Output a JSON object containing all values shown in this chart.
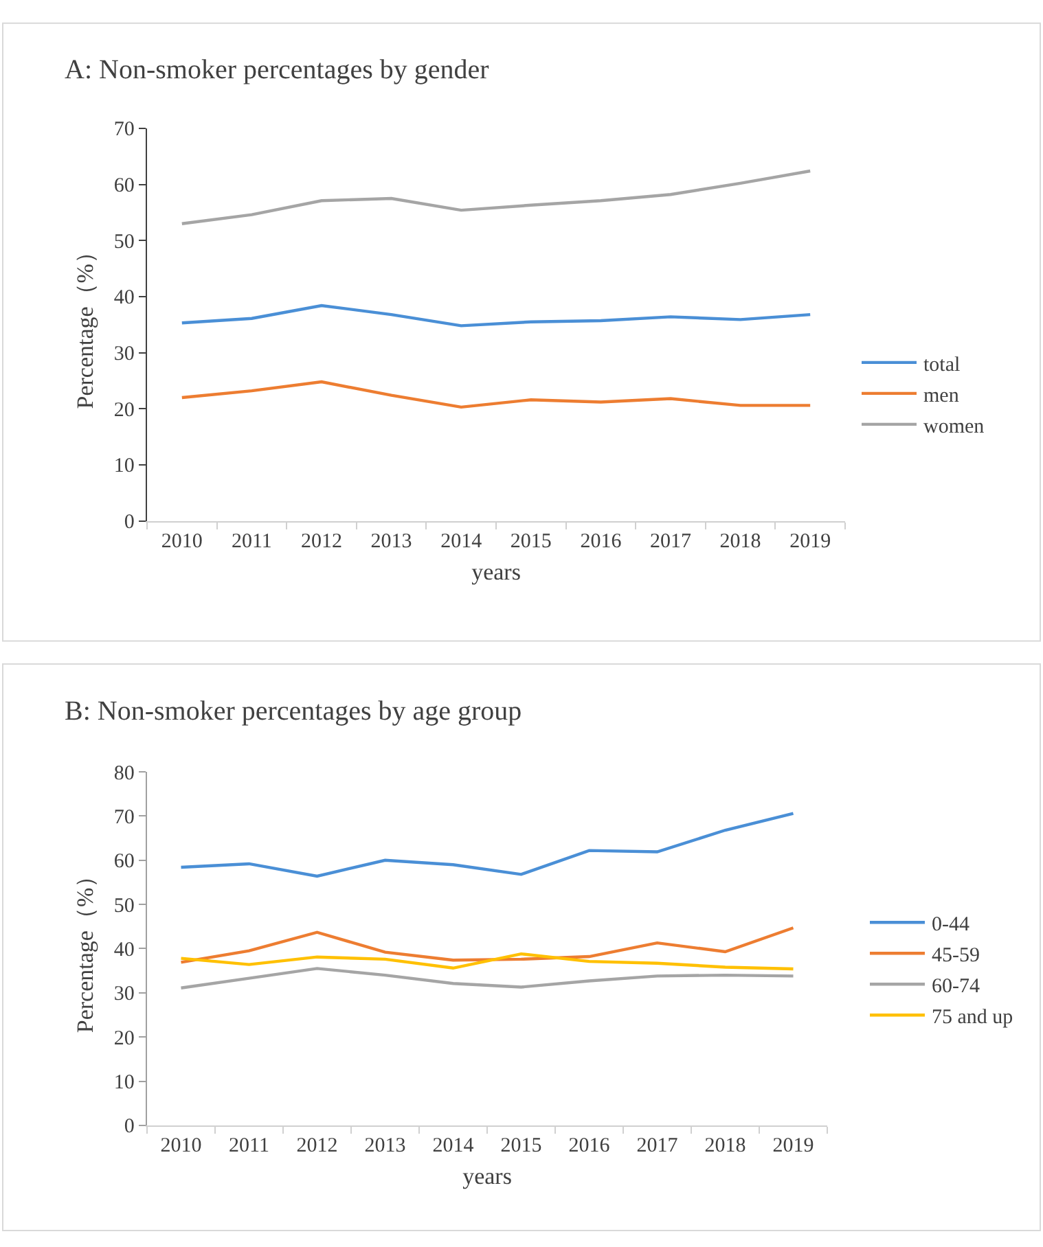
{
  "chart_data": [
    {
      "type": "line",
      "title": "A: Non-smoker percentages by gender",
      "xlabel": "years",
      "ylabel": "Percentage（%）",
      "categories": [
        "2010",
        "2011",
        "2012",
        "2013",
        "2014",
        "2015",
        "2016",
        "2017",
        "2018",
        "2019"
      ],
      "ylim": [
        0,
        70
      ],
      "yticks": [
        0,
        10,
        20,
        30,
        40,
        50,
        60,
        70
      ],
      "legend": "right",
      "marker": "none",
      "line_style": "solid",
      "series": [
        {
          "name": "total",
          "color": "#4a8fd6",
          "values": [
            35.3,
            36.1,
            38.4,
            36.8,
            34.8,
            35.5,
            35.7,
            36.4,
            35.9,
            36.8
          ]
        },
        {
          "name": "men",
          "color": "#ed7d31",
          "values": [
            22.0,
            23.2,
            24.8,
            22.4,
            20.3,
            21.6,
            21.2,
            21.8,
            20.6,
            20.6
          ]
        },
        {
          "name": "women",
          "color": "#a5a5a5",
          "values": [
            53.0,
            54.6,
            57.1,
            57.5,
            55.4,
            56.3,
            57.1,
            58.2,
            60.2,
            62.4
          ]
        }
      ]
    },
    {
      "type": "line",
      "title": "B: Non-smoker percentages by age group",
      "xlabel": "years",
      "ylabel": "Percentage（%）",
      "categories": [
        "2010",
        "2011",
        "2012",
        "2013",
        "2014",
        "2015",
        "2016",
        "2017",
        "2018",
        "2019"
      ],
      "ylim": [
        0,
        80
      ],
      "yticks": [
        0,
        10,
        20,
        30,
        40,
        50,
        60,
        70,
        80
      ],
      "legend": "right",
      "marker": "none",
      "line_style": "solid",
      "series": [
        {
          "name": "0-44",
          "color": "#4a8fd6",
          "values": [
            58.4,
            59.2,
            56.4,
            60.0,
            59.0,
            56.8,
            62.2,
            61.9,
            66.8,
            70.6
          ]
        },
        {
          "name": "45-59",
          "color": "#ed7d31",
          "values": [
            36.9,
            39.5,
            43.7,
            39.2,
            37.4,
            37.6,
            38.2,
            41.3,
            39.3,
            44.7
          ]
        },
        {
          "name": "60-74",
          "color": "#a5a5a5",
          "values": [
            31.1,
            33.3,
            35.5,
            34.0,
            32.1,
            31.3,
            32.7,
            33.8,
            34.0,
            33.8
          ]
        },
        {
          "name": "75 and up",
          "color": "#ffc000",
          "values": [
            37.8,
            36.4,
            38.1,
            37.6,
            35.6,
            38.8,
            37.1,
            36.7,
            35.8,
            35.4
          ]
        }
      ]
    }
  ]
}
